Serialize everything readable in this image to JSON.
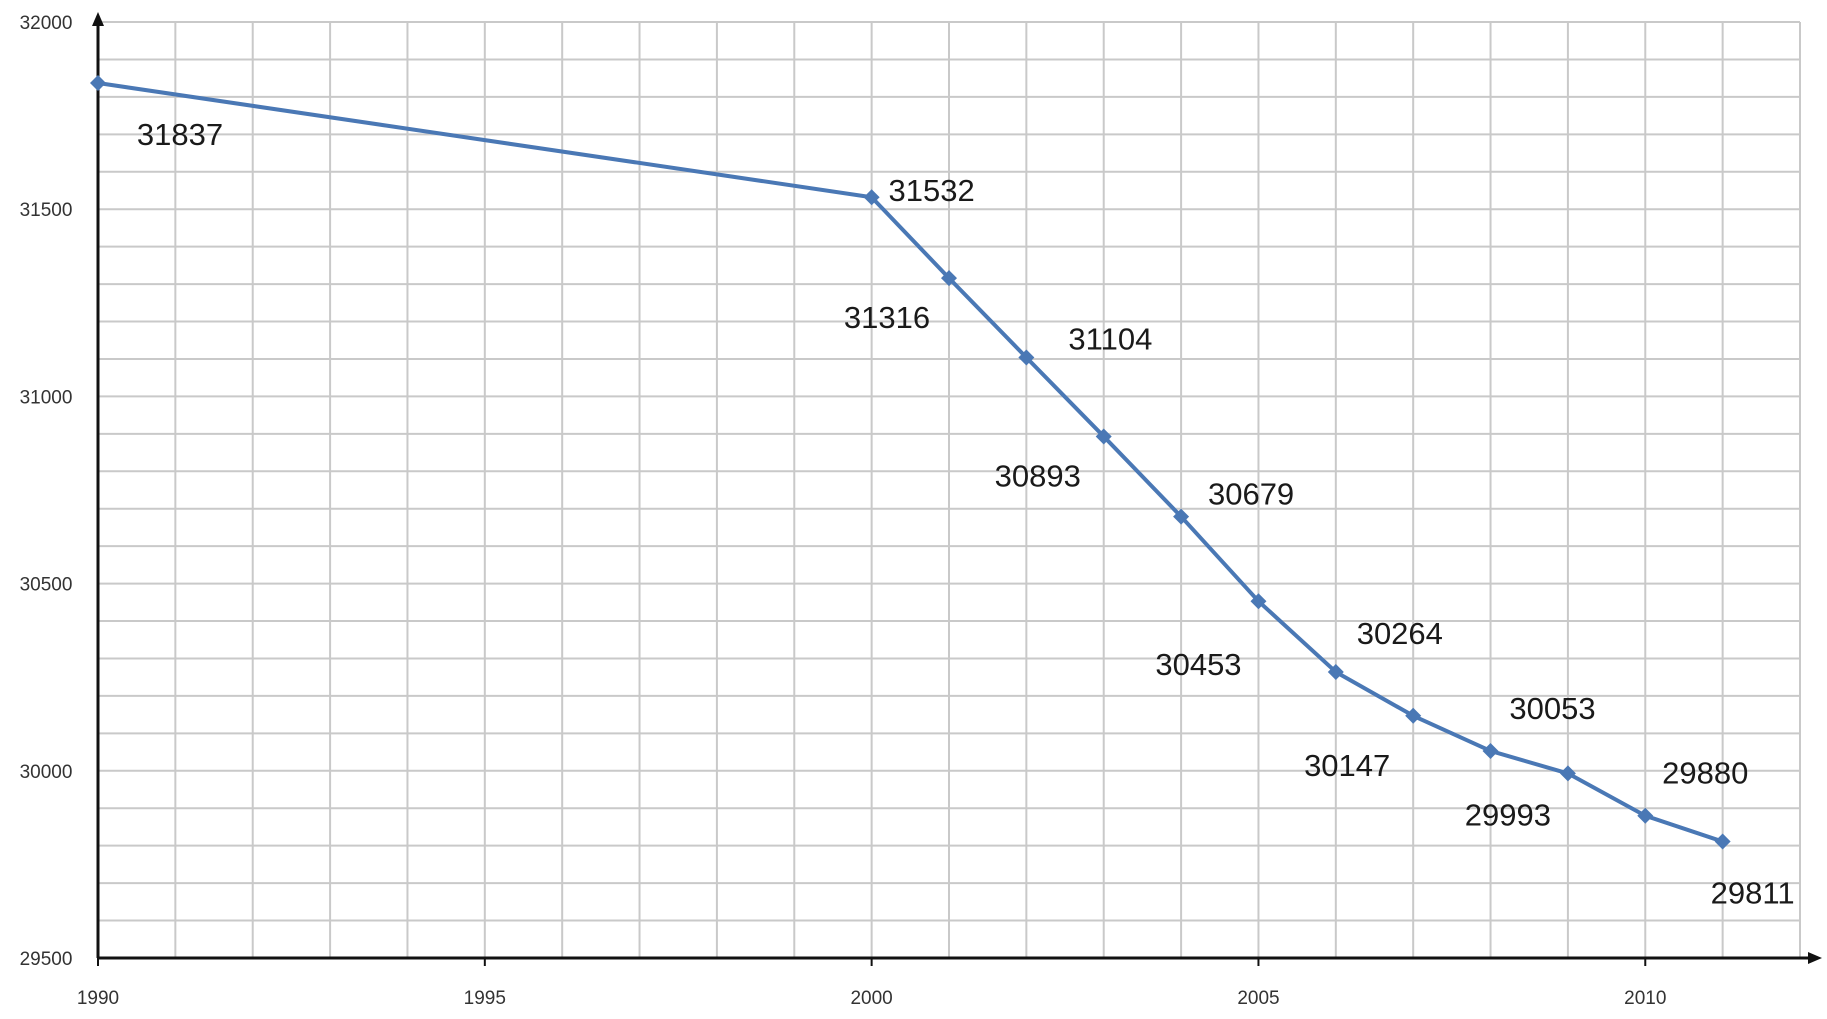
{
  "chart_data": {
    "type": "line",
    "title": "",
    "xlabel": "",
    "ylabel": "",
    "xlim": [
      1990,
      2012
    ],
    "ylim": [
      29500,
      32000
    ],
    "x_ticks": [
      1990,
      1995,
      2000,
      2005,
      2010
    ],
    "x_tick_labels": [
      "1990",
      "1995",
      "2000",
      "2005",
      "2010"
    ],
    "y_ticks": [
      29500,
      30000,
      30500,
      31000,
      31500,
      32000
    ],
    "y_tick_labels": [
      "29500",
      "30000",
      "30500",
      "31000",
      "31500",
      "32000"
    ],
    "grid": true,
    "legend": "none",
    "colors": {
      "line": "#4a78b5",
      "grid": "#c9c9c9",
      "axis": "#111111"
    },
    "series": [
      {
        "x": [
          1990,
          2000,
          2001,
          2002,
          2003,
          2004,
          2005,
          2006,
          2007,
          2008,
          2009,
          2010,
          2011
        ],
        "values": [
          31837,
          31532,
          31316,
          31104,
          30893,
          30679,
          30453,
          30264,
          30147,
          30053,
          29993,
          29880,
          29811
        ],
        "data_labels": [
          "31837",
          "31532",
          "31316",
          "31104",
          "30893",
          "30679",
          "30453",
          "30264",
          "30147",
          "30053",
          "29993",
          "29880",
          "29811"
        ]
      }
    ]
  }
}
